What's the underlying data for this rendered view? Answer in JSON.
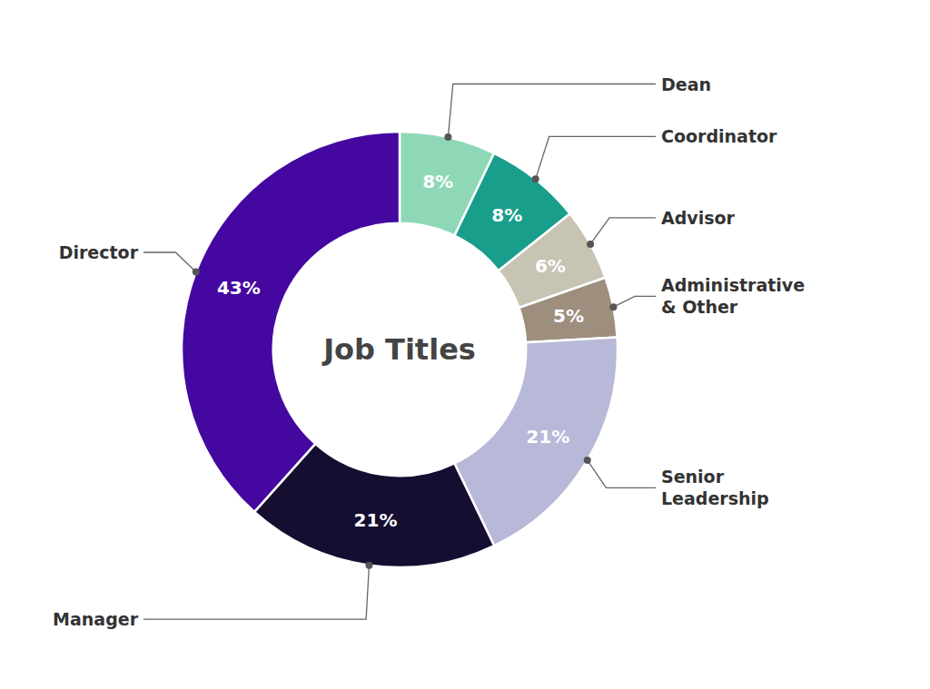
{
  "chart_data": {
    "type": "pie",
    "title": "Job Titles",
    "categories": [
      "Dean",
      "Coordinator",
      "Advisor",
      "Administrative\n& Other",
      "Senior\nLeadership",
      "Manager",
      "Director"
    ],
    "values": [
      8,
      8,
      6,
      5,
      21,
      21,
      43
    ],
    "value_labels": [
      "8%",
      "8%",
      "6%",
      "5%",
      "21%",
      "21%",
      "43%"
    ],
    "colors": [
      "#8ed8b8",
      "#1a9e8c",
      "#c8c4b4",
      "#9e8e7e",
      "#b8b8d8",
      "#150e30",
      "#4408a0"
    ],
    "data_labels": true
  }
}
